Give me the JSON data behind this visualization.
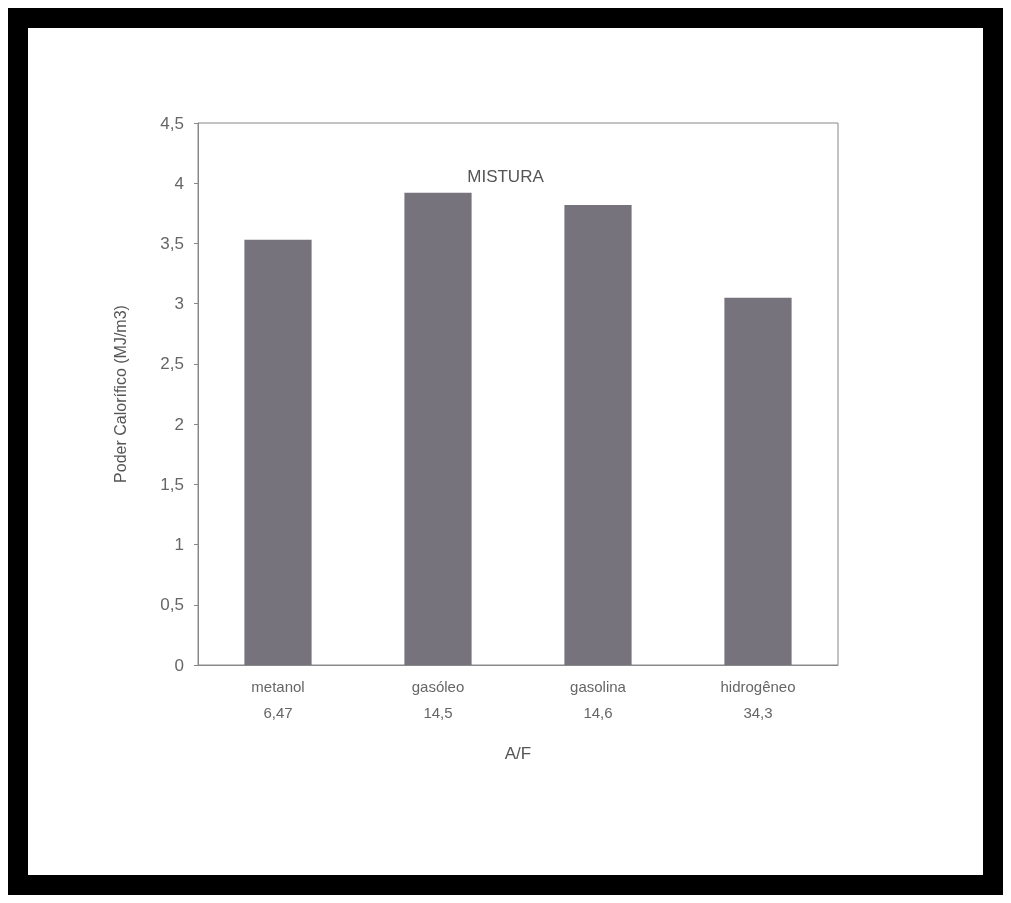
{
  "chart_data": {
    "type": "bar",
    "title": "MISTURA",
    "xlabel": "A/F",
    "ylabel": "Poder Calorífico (MJ/m3)",
    "categories": [
      "metanol\n6,47",
      "gasóleo\n14,5",
      "gasolina\n14,6",
      "hidrogêneo\n34,3"
    ],
    "values": [
      3.53,
      3.92,
      3.82,
      3.05
    ],
    "color": "#76737c",
    "ylim": [
      0,
      4.5
    ],
    "yticks": [
      0,
      {
        "value": 0.5,
        "label": "0,5"
      },
      1,
      {
        "value": 1.5,
        "label": "1,5"
      },
      2,
      {
        "value": 2.5,
        "label": "2,5"
      },
      3,
      {
        "value": 3.5,
        "label": "3,5"
      },
      4,
      {
        "value": 4.5,
        "label": "4,5"
      }
    ],
    "grid": false
  }
}
